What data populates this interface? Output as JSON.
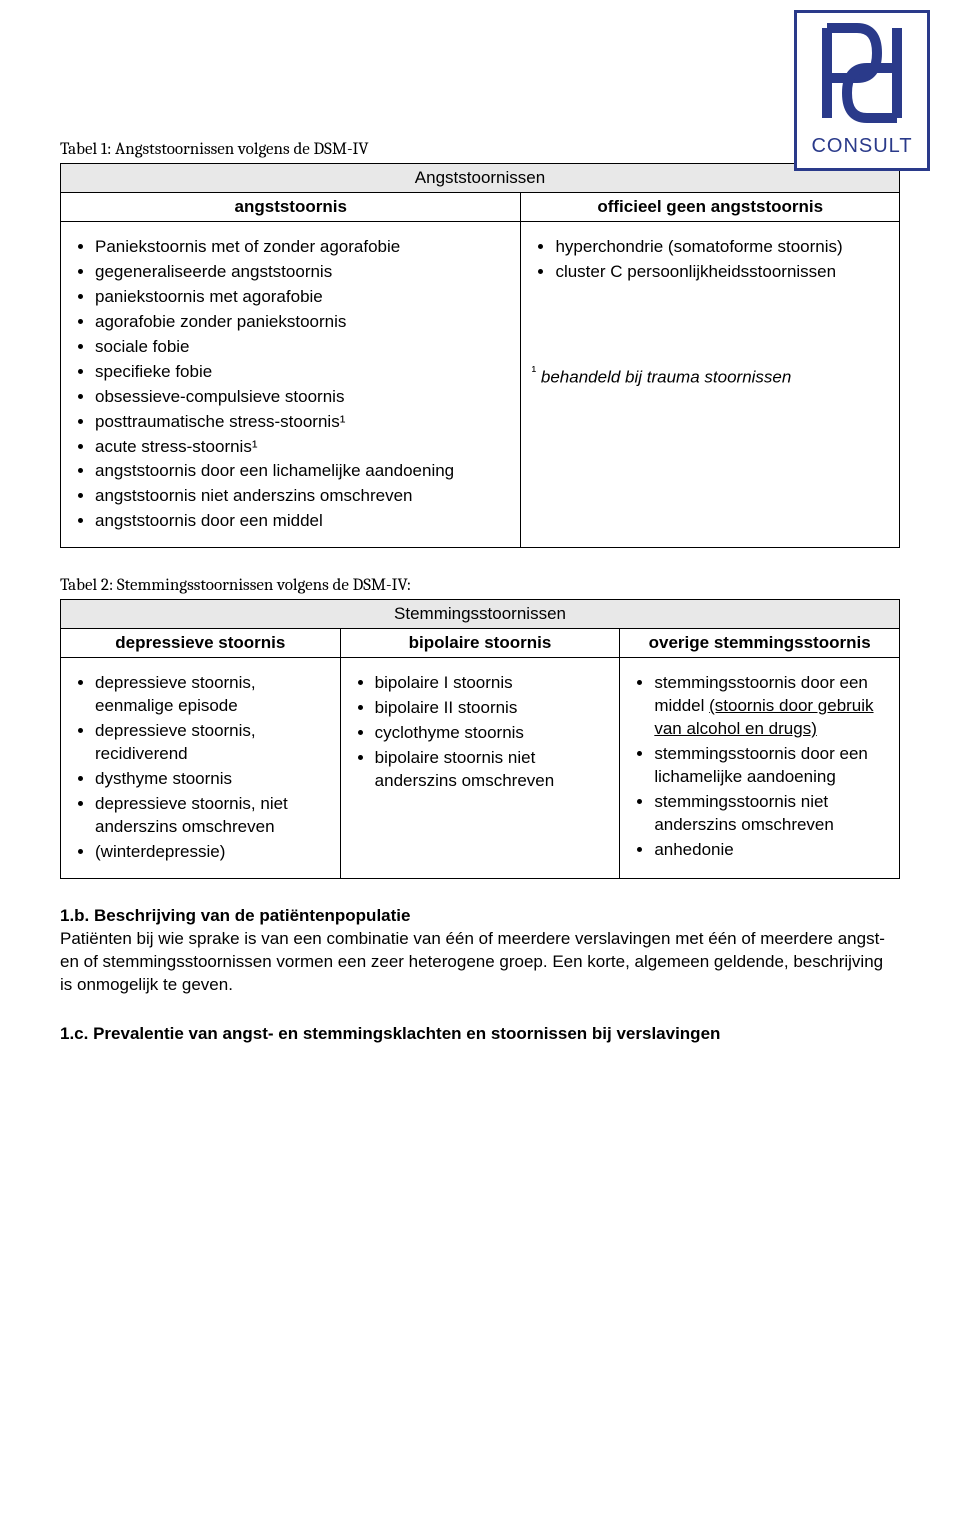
{
  "logo": {
    "text": "CONSULT",
    "border_color": "#2a3a8a"
  },
  "table1": {
    "caption": "Tabel 1: Angststoornissen volgens de DSM-IV",
    "title": "Angststoornissen",
    "col1_header": "angststoornis",
    "col2_header": "officieel geen angststoornis",
    "col1_items": [
      "Paniekstoornis met of zonder agorafobie",
      "gegeneraliseerde angststoornis",
      "paniekstoornis met agorafobie",
      "agorafobie zonder paniekstoornis",
      "sociale fobie",
      "specifieke fobie",
      "obsessieve-compulsieve stoornis",
      "posttraumatische stress-stoornis¹",
      "acute stress-stoornis¹",
      "angststoornis door een lichamelijke aandoening",
      "angststoornis niet anderszins omschreven",
      "angststoornis door een middel"
    ],
    "col2_items": [
      "hyperchondrie (somatoforme stoornis)",
      "cluster C persoonlijkheidsstoornissen"
    ],
    "footnote_marker": "¹",
    "footnote_text": " behandeld bij trauma stoornissen"
  },
  "table2": {
    "caption": "Tabel 2: Stemmingsstoornissen volgens de DSM-IV:",
    "title": "Stemmingsstoornissen",
    "col1_header": "depressieve stoornis",
    "col2_header": "bipolaire stoornis",
    "col3_header": "overige stemmingsstoornis",
    "col1_items": [
      "depressieve stoornis, eenmalige episode",
      "depressieve stoornis, recidiverend",
      "dysthyme stoornis",
      "depressieve stoornis, niet anderszins omschreven",
      "(winterdepressie)"
    ],
    "col2_items": [
      "bipolaire I stoornis",
      "bipolaire II stoornis",
      "cyclothyme stoornis",
      "bipolaire stoornis niet anderszins omschreven"
    ],
    "col3_item1_pre": "stemmingsstoornis door een middel ",
    "col3_item1_underline": "(stoornis door gebruik van alcohol en drugs)",
    "col3_items_rest": [
      "stemmingsstoornis door een lichamelijke aandoening",
      "stemmingsstoornis niet anderszins omschreven",
      "anhedonie"
    ]
  },
  "section_1b": {
    "heading": "1.b. Beschrijving van de patiëntenpopulatie",
    "body": "Patiënten bij wie sprake is van een combinatie van één of meerdere verslavingen met één of meerdere angst- en of stemmingsstoornissen vormen een zeer heterogene groep. Een korte, algemeen geldende, beschrijving is onmogelijk te geven."
  },
  "section_1c": {
    "heading": "1.c. Prevalentie van angst- en stemmingsklachten en stoornissen bij verslavingen"
  },
  "colors": {
    "text": "#000000",
    "background": "#ffffff",
    "table_header_bg": "#e8e8e8",
    "logo_blue": "#2a3a8a"
  }
}
